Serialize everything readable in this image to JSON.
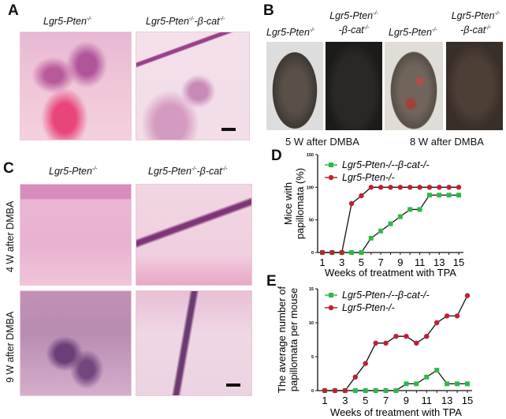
{
  "panels": {
    "A": {
      "label": "A",
      "headers": [
        "Lgr5-Pten",
        "Lgr5-Pten",
        "-β-cat"
      ],
      "sup": "-/-"
    },
    "B": {
      "label": "B",
      "captions": [
        "5 W after DMBA",
        "8 W after DMBA"
      ]
    },
    "C": {
      "label": "C",
      "rows": [
        "4 W after DMBA",
        "9 W after DMBA"
      ]
    },
    "D": {
      "label": "D"
    },
    "E": {
      "label": "E"
    }
  },
  "genotypes": {
    "pten": "Lgr5-Pten",
    "bcat_a": "Lgr5-Pten",
    "bcat_b": "-β-cat",
    "sup": "-/-"
  },
  "chart_data": [
    {
      "panel": "D",
      "type": "line",
      "xlabel": "Weeks of treatment with TPA",
      "ylabel": "Mice with papillomata (%)",
      "ylabel_lines": [
        "Mice with",
        "papillomata (%)"
      ],
      "x": [
        1,
        2,
        3,
        4,
        5,
        6,
        7,
        8,
        9,
        10,
        11,
        12,
        13,
        14,
        15
      ],
      "xticks": [
        1,
        3,
        5,
        7,
        9,
        11,
        13,
        15
      ],
      "yticks": [
        0,
        50,
        100,
        150
      ],
      "ylim": [
        0,
        150
      ],
      "legend": "top",
      "series": [
        {
          "name": "Lgr5-Pten-/--β-cat-/-",
          "color": "#2db84a",
          "marker": "square",
          "values": [
            0,
            0,
            0,
            0,
            0,
            22,
            33,
            44,
            55,
            66,
            66,
            88,
            88,
            88,
            88
          ]
        },
        {
          "name": "Lgr5-Pten-/-",
          "color": "#c0202e",
          "marker": "circle",
          "values": [
            0,
            0,
            0,
            75,
            87,
            100,
            100,
            100,
            100,
            100,
            100,
            100,
            100,
            100,
            100
          ]
        }
      ]
    },
    {
      "panel": "E",
      "type": "line",
      "xlabel": "Weeks of treatment with TPA",
      "ylabel": "The average number of papillomata per mouse",
      "ylabel_lines": [
        "The average number of",
        "papillomata per mouse"
      ],
      "x": [
        1,
        2,
        3,
        4,
        5,
        6,
        7,
        8,
        9,
        10,
        11,
        12,
        13,
        14,
        15
      ],
      "xticks": [
        1,
        3,
        5,
        7,
        9,
        11,
        13,
        15
      ],
      "yticks": [
        0,
        5,
        10,
        15
      ],
      "ylim": [
        0,
        15
      ],
      "legend": "top-left",
      "series": [
        {
          "name": "Lgr5-Pten-/--β-cat-/-",
          "color": "#2db84a",
          "marker": "square",
          "values": [
            0,
            0,
            0,
            0,
            0,
            0,
            0,
            0,
            1,
            1,
            2,
            3,
            1,
            1,
            1
          ]
        },
        {
          "name": "Lgr5-Pten-/-",
          "color": "#c0202e",
          "marker": "circle",
          "values": [
            0,
            0,
            0,
            2,
            4,
            7,
            7,
            8,
            8,
            7,
            8,
            10,
            11,
            11,
            14
          ]
        }
      ]
    }
  ]
}
